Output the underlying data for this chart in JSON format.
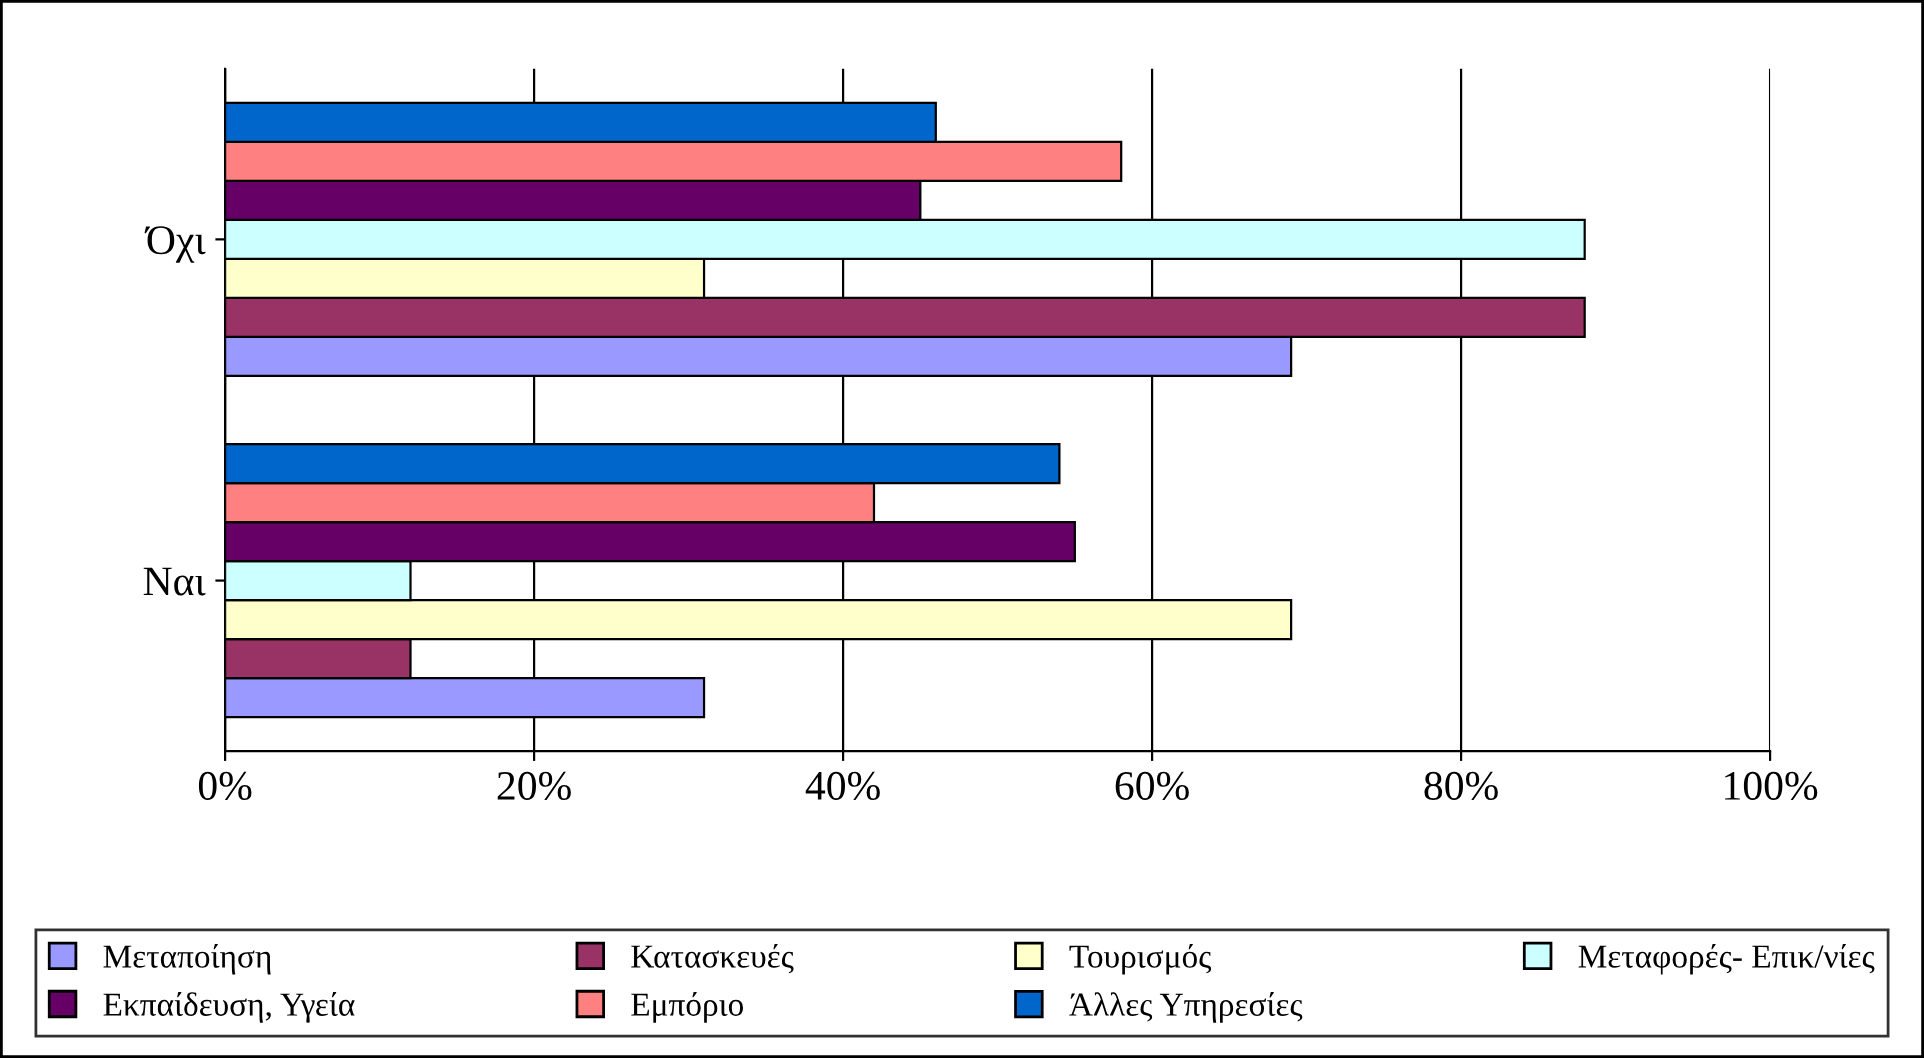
{
  "chart_data": {
    "type": "bar",
    "orientation": "horizontal",
    "categories": [
      "Όχι",
      "Ναι"
    ],
    "series": [
      {
        "name": "Μεταποίηση",
        "color": "#9999ff",
        "values": [
          69,
          31
        ]
      },
      {
        "name": "Κατασκευές",
        "color": "#993366",
        "values": [
          88,
          12
        ]
      },
      {
        "name": "Τουρισμός",
        "color": "#ffffcc",
        "values": [
          31,
          69
        ]
      },
      {
        "name": "Μεταφορές- Επικ/νίες",
        "color": "#ccffff",
        "values": [
          88,
          12
        ]
      },
      {
        "name": "Εκπαίδευση, Υγεία",
        "color": "#660066",
        "values": [
          45,
          55
        ]
      },
      {
        "name": "Εμπόριο",
        "color": "#ff8080",
        "values": [
          58,
          42
        ]
      },
      {
        "name": "Άλλες Υπηρεσίες",
        "color": "#0066cc",
        "values": [
          46,
          54
        ]
      }
    ],
    "xlim": [
      0,
      100
    ],
    "xticks": [
      {
        "value": 0,
        "label": "0%"
      },
      {
        "value": 20,
        "label": "20%"
      },
      {
        "value": 40,
        "label": "40%"
      },
      {
        "value": 60,
        "label": "60%"
      },
      {
        "value": 80,
        "label": "80%"
      },
      {
        "value": 100,
        "label": "100%"
      }
    ],
    "grid": "x",
    "legend": "bottom"
  }
}
